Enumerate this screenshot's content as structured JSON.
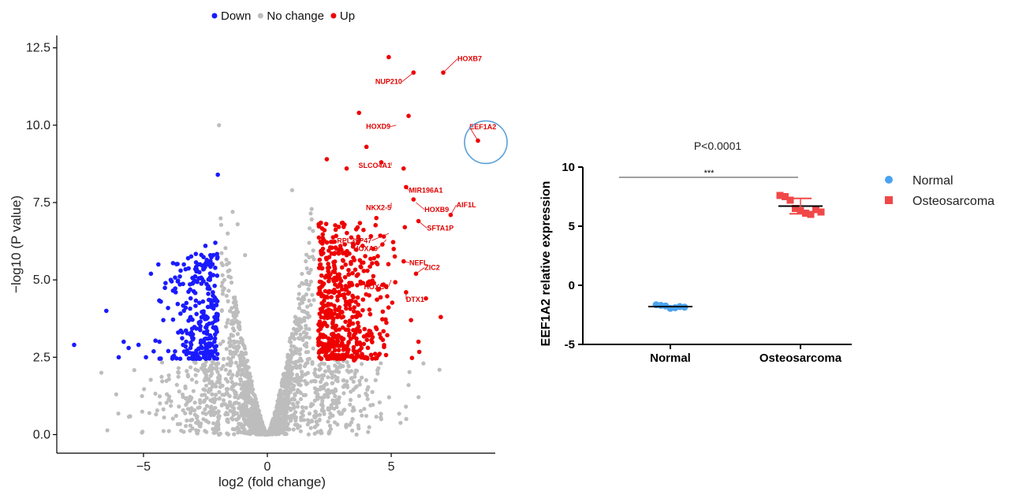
{
  "chart_data": [
    {
      "type": "scatter",
      "xlabel": "log2 (fold change)",
      "ylabel": "−log10 (P value)",
      "xlim": [
        -8.5,
        9.2
      ],
      "ylim": [
        -0.6,
        12.9
      ],
      "x_ticks": [
        -5,
        0,
        5
      ],
      "x_tick_labels": [
        "−5",
        "0",
        "5"
      ],
      "y_ticks": [
        0,
        2.5,
        5,
        7.5,
        10,
        12.5
      ],
      "y_tick_labels": [
        "0.0",
        "2.5",
        "5.0",
        "7.5",
        "10.0",
        "12.5"
      ],
      "grid": false,
      "legend_position": "top",
      "legend": [
        {
          "name": "Down",
          "color": "#1a1aff"
        },
        {
          "name": "No change",
          "color": "#bdbdbd"
        },
        {
          "name": "Up",
          "color": "#ee0000"
        }
      ],
      "series": [
        {
          "name": "Down",
          "color": "#1a1aff",
          "points": [
            [
              -7.8,
              2.9
            ],
            [
              -6.5,
              4.0
            ],
            [
              -6.0,
              2.5
            ],
            [
              -5.8,
              3.0
            ],
            [
              -5.6,
              2.8
            ],
            [
              -5.2,
              2.9
            ],
            [
              -4.9,
              2.5
            ],
            [
              -4.7,
              5.2
            ],
            [
              -4.4,
              5.5
            ],
            [
              -4.3,
              4.3
            ],
            [
              -4.2,
              3.7
            ],
            [
              -4.0,
              2.7
            ],
            [
              -3.9,
              5.0
            ],
            [
              -3.7,
              4.6
            ],
            [
              -3.6,
              3.3
            ],
            [
              -3.5,
              5.3
            ],
            [
              -3.4,
              2.9
            ],
            [
              -3.3,
              4.1
            ],
            [
              -3.2,
              5.7
            ],
            [
              -3.1,
              3.8
            ],
            [
              -3.0,
              4.9
            ],
            [
              -2.9,
              2.6
            ],
            [
              -2.8,
              5.5
            ],
            [
              -2.7,
              3.5
            ],
            [
              -2.6,
              4.3
            ],
            [
              -2.5,
              6.1
            ],
            [
              -2.4,
              3.1
            ],
            [
              -2.3,
              5.8
            ],
            [
              -2.2,
              4.6
            ],
            [
              -2.1,
              6.2
            ],
            [
              -2.05,
              3.9
            ],
            [
              -2.0,
              8.4
            ]
          ]
        },
        {
          "name": "Up",
          "color": "#ee0000",
          "points": [
            [
              4.9,
              12.2
            ],
            [
              7.1,
              11.7
            ],
            [
              5.9,
              11.7
            ],
            [
              3.7,
              10.4
            ],
            [
              5.7,
              10.3
            ],
            [
              8.5,
              9.5
            ],
            [
              4.0,
              9.3
            ],
            [
              2.4,
              8.9
            ],
            [
              4.6,
              8.8
            ],
            [
              5.5,
              8.6
            ],
            [
              3.2,
              8.6
            ],
            [
              5.6,
              8.0
            ],
            [
              5.9,
              7.6
            ],
            [
              7.4,
              7.1
            ],
            [
              4.4,
              7.0
            ],
            [
              6.1,
              6.9
            ],
            [
              3.7,
              6.3
            ],
            [
              4.7,
              6.4
            ],
            [
              5.1,
              6.0
            ],
            [
              5.5,
              5.6
            ],
            [
              3.2,
              5.8
            ],
            [
              6.0,
              5.2
            ],
            [
              2.8,
              5.0
            ],
            [
              4.3,
              4.9
            ],
            [
              5.6,
              4.6
            ],
            [
              6.4,
              4.4
            ],
            [
              2.5,
              4.2
            ],
            [
              3.6,
              3.8
            ],
            [
              5.8,
              3.7
            ],
            [
              7.0,
              3.8
            ],
            [
              2.2,
              3.5
            ],
            [
              4.0,
              3.2
            ],
            [
              6.1,
              3.0
            ],
            [
              2.6,
              2.6
            ],
            [
              3.5,
              2.4
            ],
            [
              2.1,
              2.5
            ]
          ]
        }
      ],
      "gene_labels": [
        {
          "text": "HOXB7",
          "x": 7.1,
          "y": 11.7
        },
        {
          "text": "NUP210",
          "x": 5.9,
          "y": 11.7
        },
        {
          "text": "HOXD9",
          "x": 5.2,
          "y": 10.0
        },
        {
          "text": "EEF1A2",
          "x": 8.5,
          "y": 9.5
        },
        {
          "text": "SLCO4A1",
          "x": 5.0,
          "y": 8.8
        },
        {
          "text": "MIR196A1",
          "x": 5.6,
          "y": 8.0
        },
        {
          "text": "NKX2-5",
          "x": 5.0,
          "y": 7.5
        },
        {
          "text": "HOXB9",
          "x": 6.0,
          "y": 7.5
        },
        {
          "text": "AIF1L",
          "x": 7.4,
          "y": 7.1
        },
        {
          "text": "RPL39P47",
          "x": 4.9,
          "y": 6.5
        },
        {
          "text": "SFTA1P",
          "x": 6.1,
          "y": 6.9
        },
        {
          "text": "HOXA9",
          "x": 4.8,
          "y": 6.3
        },
        {
          "text": "NEFL",
          "x": 5.5,
          "y": 5.6
        },
        {
          "text": "ZIC2",
          "x": 6.0,
          "y": 5.2
        },
        {
          "text": "HOXC8",
          "x": 5.0,
          "y": 5.0
        },
        {
          "text": "DTX1",
          "x": 5.6,
          "y": 4.6
        }
      ],
      "highlight": {
        "gene": "EEF1A2",
        "x": 8.5,
        "y": 9.5
      }
    },
    {
      "type": "scatter",
      "title": "P<0.0001",
      "ylabel": "EEF1A2 relative expression",
      "categories": [
        "Normal",
        "Osteosarcoma"
      ],
      "ylim": [
        -5,
        10
      ],
      "y_ticks": [
        -5,
        0,
        5,
        10
      ],
      "grid": false,
      "legend_position": "right",
      "significance": "***",
      "series": [
        {
          "name": "Normal",
          "color": "#4aa3f0",
          "marker": "circle",
          "mean": -1.8,
          "sd": 0.15,
          "values": [
            -1.65,
            -1.7,
            -1.75,
            -1.95,
            -1.9,
            -1.8,
            -1.85
          ]
        },
        {
          "name": "Osteosarcoma",
          "color": "#f04848",
          "marker": "square",
          "mean": 6.7,
          "sd": 0.65,
          "values": [
            7.6,
            7.5,
            7.2,
            6.5,
            6.3,
            6.1,
            6.0,
            6.4,
            6.2
          ]
        }
      ]
    }
  ]
}
